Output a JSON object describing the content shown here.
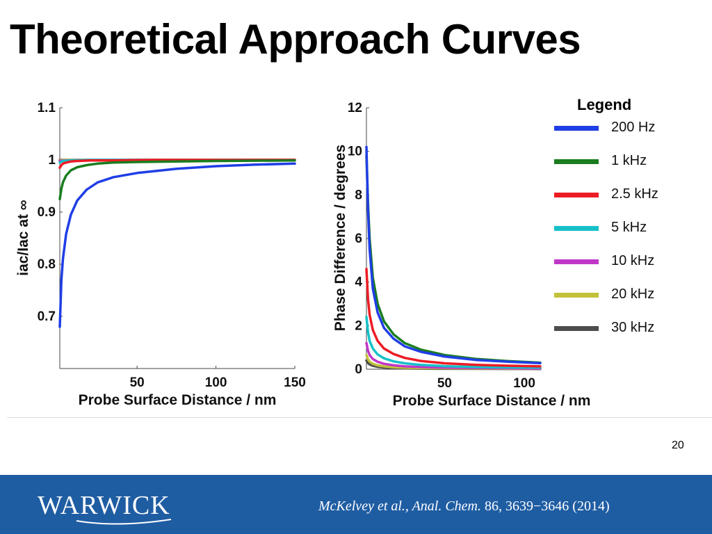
{
  "slide": {
    "title": "Theoretical Approach Curves",
    "page_number": "20",
    "logo_text": "WARWICK",
    "citation_authors": "McKelvey et al., Anal. Chem.",
    "citation_rest": " 86, 3639−3646 (2014)"
  },
  "legend": {
    "title": "Legend",
    "items": [
      {
        "label": "200 Hz",
        "color": "#1f3ee6"
      },
      {
        "label": "1 kHz",
        "color": "#1a7d1f"
      },
      {
        "label": "2.5 kHz",
        "color": "#ec1c24"
      },
      {
        "label": "5 kHz",
        "color": "#17c0c8"
      },
      {
        "label": "10 kHz",
        "color": "#c037c8"
      },
      {
        "label": "20 kHz",
        "color": "#c2c23a"
      },
      {
        "label": "30 kHz",
        "color": "#4d4d4d"
      }
    ]
  },
  "chart_data": [
    {
      "type": "line",
      "xlabel": "Probe Surface Distance / nm",
      "ylabel": "iac/Iac at ∞",
      "xlim": [
        1,
        150
      ],
      "ylim": [
        0.6,
        1.1
      ],
      "xticks": [
        50,
        100,
        150
      ],
      "yticks": [
        0.7,
        0.8,
        0.9,
        1,
        1.1
      ],
      "grid": false,
      "series": [
        {
          "name": "200 Hz",
          "color": "#1f3ee6",
          "x": [
            1,
            2,
            3,
            5,
            8,
            12,
            18,
            25,
            35,
            50,
            75,
            100,
            125,
            150
          ],
          "y": [
            0.68,
            0.77,
            0.81,
            0.858,
            0.895,
            0.922,
            0.943,
            0.957,
            0.967,
            0.975,
            0.983,
            0.988,
            0.991,
            0.993
          ]
        },
        {
          "name": "1 kHz",
          "color": "#1a7d1f",
          "x": [
            1,
            2,
            3,
            5,
            8,
            12,
            18,
            25,
            35,
            50,
            75,
            100,
            150
          ],
          "y": [
            0.925,
            0.945,
            0.957,
            0.97,
            0.98,
            0.986,
            0.99,
            0.993,
            0.995,
            0.996,
            0.997,
            0.998,
            0.999
          ]
        },
        {
          "name": "2.5 kHz",
          "color": "#ec1c24",
          "x": [
            1,
            2,
            3,
            5,
            8,
            12,
            20,
            35,
            60,
            100,
            150
          ],
          "y": [
            0.985,
            0.99,
            0.993,
            0.995,
            0.997,
            0.998,
            0.999,
            0.999,
            1,
            1,
            1
          ]
        },
        {
          "name": "5 kHz",
          "color": "#17c0c8",
          "x": [
            1,
            3,
            8,
            20,
            50,
            150
          ],
          "y": [
            0.995,
            0.998,
            0.999,
            1,
            1,
            1
          ]
        },
        {
          "name": "10 kHz",
          "color": "#c037c8",
          "x": [
            1,
            5,
            20,
            150
          ],
          "y": [
            0.998,
            0.999,
            1,
            1
          ]
        },
        {
          "name": "20 kHz",
          "color": "#c2c23a",
          "x": [
            1,
            5,
            150
          ],
          "y": [
            0.999,
            1,
            1
          ]
        },
        {
          "name": "30 kHz",
          "color": "#4d4d4d",
          "x": [
            1,
            150
          ],
          "y": [
            1,
            1
          ]
        }
      ]
    },
    {
      "type": "line",
      "xlabel": "Probe Surface Distance / nm",
      "ylabel": "Phase Difference / degrees",
      "xlim": [
        1,
        110
      ],
      "ylim": [
        0,
        12
      ],
      "xticks": [
        50,
        100
      ],
      "yticks": [
        0,
        2,
        4,
        6,
        8,
        10,
        12
      ],
      "grid": false,
      "series": [
        {
          "name": "200 Hz",
          "color": "#1f3ee6",
          "x": [
            1,
            2,
            3,
            5,
            8,
            12,
            18,
            25,
            35,
            50,
            70,
            90,
            110
          ],
          "y": [
            10.2,
            7.3,
            5.5,
            3.7,
            2.6,
            1.9,
            1.4,
            1.05,
            0.8,
            0.58,
            0.42,
            0.34,
            0.28
          ]
        },
        {
          "name": "1 kHz",
          "color": "#1a7d1f",
          "x": [
            1,
            2,
            3,
            5,
            8,
            12,
            18,
            25,
            35,
            50,
            70,
            90,
            110
          ],
          "y": [
            9.8,
            7.6,
            6.0,
            4.2,
            3.0,
            2.2,
            1.6,
            1.2,
            0.9,
            0.65,
            0.47,
            0.37,
            0.3
          ]
        },
        {
          "name": "2.5 kHz",
          "color": "#ec1c24",
          "x": [
            1,
            2,
            3,
            5,
            8,
            12,
            18,
            25,
            35,
            50,
            70,
            90,
            110
          ],
          "y": [
            4.6,
            3.2,
            2.5,
            1.8,
            1.3,
            0.95,
            0.7,
            0.52,
            0.38,
            0.27,
            0.2,
            0.16,
            0.13
          ]
        },
        {
          "name": "5 kHz",
          "color": "#17c0c8",
          "x": [
            1,
            2,
            3,
            5,
            8,
            12,
            18,
            25,
            35,
            50,
            70,
            90,
            110
          ],
          "y": [
            2.4,
            1.7,
            1.3,
            0.95,
            0.68,
            0.5,
            0.36,
            0.27,
            0.2,
            0.14,
            0.1,
            0.08,
            0.07
          ]
        },
        {
          "name": "10 kHz",
          "color": "#c037c8",
          "x": [
            1,
            2,
            3,
            5,
            8,
            12,
            18,
            25,
            35,
            50,
            110
          ],
          "y": [
            1.2,
            0.85,
            0.65,
            0.47,
            0.34,
            0.25,
            0.18,
            0.13,
            0.1,
            0.07,
            0.03
          ]
        },
        {
          "name": "20 kHz",
          "color": "#c2c23a",
          "x": [
            1,
            2,
            3,
            5,
            8,
            12,
            18,
            25,
            35,
            50,
            110
          ],
          "y": [
            0.65,
            0.45,
            0.35,
            0.25,
            0.18,
            0.13,
            0.09,
            0.07,
            0.05,
            0.04,
            0.02
          ]
        },
        {
          "name": "30 kHz",
          "color": "#4d4d4d",
          "x": [
            1,
            2,
            3,
            5,
            8,
            12,
            18,
            25,
            35,
            50,
            110
          ],
          "y": [
            0.4,
            0.28,
            0.22,
            0.16,
            0.11,
            0.08,
            0.06,
            0.04,
            0.03,
            0.02,
            0.01
          ]
        }
      ]
    }
  ]
}
